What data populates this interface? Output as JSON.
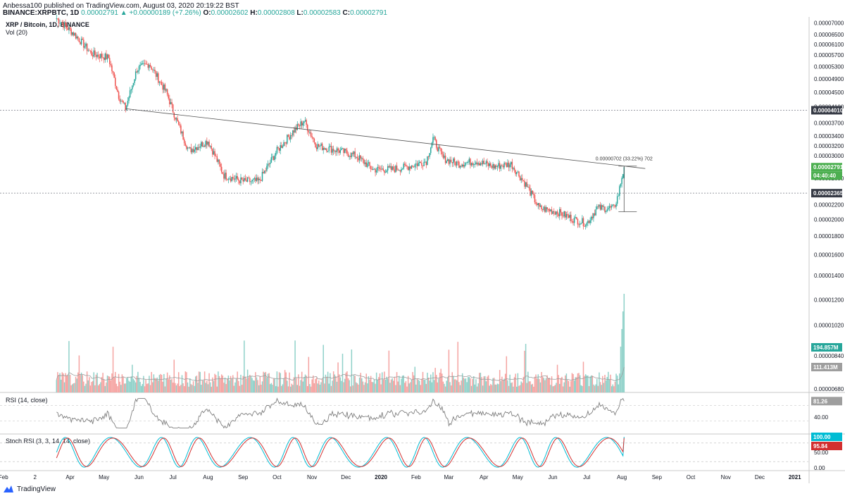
{
  "header": {
    "publisher_line": "Anbessa100 published on TradingView.com, August 03, 2020 20:19:22 BST",
    "symbol": "BINANCE:XRPBTC, 1D",
    "change": "0.00002791 ▲ +0.00000189 (+7.26%)",
    "o_label": "O:",
    "o_value": "0.00002602",
    "h_label": "H:",
    "h_value": "0.00002808",
    "l_label": "L:",
    "l_value": "0.00002583",
    "c_label": "C:",
    "c_value": "0.00002791"
  },
  "main_pane": {
    "title": "XRP / Bitcoin, 1D, BINANCE",
    "vol_label": "Vol (20)",
    "measure_label": "0.00000702 (33.22%) 702"
  },
  "rsi_pane": {
    "label": "RSI (14, close)",
    "ticks": [
      "40.00"
    ],
    "badge": "81.26"
  },
  "stoch_pane": {
    "label": "Stoch RSI (3, 3, 14, 14, close)",
    "ticks": [
      "50.00",
      "0.00"
    ],
    "badge_k": "100.00",
    "badge_d": "95.84"
  },
  "price_axis_ticks": [
    "0.00007000",
    "0.00006500",
    "0.00006100",
    "0.00005700",
    "0.00005300",
    "0.00004900",
    "0.00004500",
    "0.00004100",
    "0.00003700",
    "0.00003400",
    "0.00003200",
    "0.00003000",
    "0.00002600",
    "0.00002200",
    "0.00002000",
    "0.00001800",
    "0.00001600",
    "0.00001400",
    "0.00001200",
    "0.00001020",
    "0.00000840",
    "0.00000680"
  ],
  "price_badges": {
    "resistance": "0.00004010",
    "last_price": "0.00002791",
    "countdown": "04:40:40",
    "support": "0.00002365",
    "volume": "194.857M",
    "vol_ma": "111.413M"
  },
  "time_axis_labels": [
    "Feb",
    "2",
    "Apr",
    "May",
    "Jun",
    "Jul",
    "Aug",
    "Sep",
    "Oct",
    "Nov",
    "Dec",
    "2020",
    "Feb",
    "Mar",
    "Apr",
    "May",
    "Jun",
    "Jul",
    "Aug",
    "Sep",
    "Oct",
    "Nov",
    "Dec",
    "2021"
  ],
  "footer": {
    "brand": "TradingView"
  },
  "colors": {
    "up": "#26a69a",
    "down": "#ef5350",
    "vol_up": "#8fd1c9",
    "vol_down": "#f5a3a1",
    "grid": "#e6e6e6",
    "axis_text": "#131722",
    "level_line": "#787b86",
    "badge_dark": "#363a45",
    "badge_green": "#4caf50",
    "badge_teal": "#26a69a",
    "rsi_line": "#7e7e7e",
    "stoch_k": "#00bcd4",
    "stoch_d": "#d32f2f"
  },
  "chart_data": {
    "type": "candlestick",
    "symbol": "XRP/BTC",
    "timeframe": "1D",
    "x_range": [
      "2019-02",
      "2021-01"
    ],
    "y_scale": "log",
    "y_range": [
      6.8e-06,
      7.2e-05
    ],
    "price_path": [
      {
        "date": "2019-03-20",
        "close": 7.2e-05
      },
      {
        "date": "2019-04-05",
        "close": 6.5e-05
      },
      {
        "date": "2019-04-20",
        "close": 5.75e-05
      },
      {
        "date": "2019-05-05",
        "close": 5.6e-05
      },
      {
        "date": "2019-05-14",
        "close": 4.4e-05
      },
      {
        "date": "2019-05-20",
        "close": 4.05e-05
      },
      {
        "date": "2019-05-30",
        "close": 5.2e-05
      },
      {
        "date": "2019-06-10",
        "close": 5.4e-05
      },
      {
        "date": "2019-06-25",
        "close": 4.5e-05
      },
      {
        "date": "2019-07-05",
        "close": 3.7e-05
      },
      {
        "date": "2019-07-15",
        "close": 3.1e-05
      },
      {
        "date": "2019-08-01",
        "close": 3.3e-05
      },
      {
        "date": "2019-08-15",
        "close": 2.65e-05
      },
      {
        "date": "2019-09-01",
        "close": 2.55e-05
      },
      {
        "date": "2019-09-15",
        "close": 2.55e-05
      },
      {
        "date": "2019-10-01",
        "close": 3.1e-05
      },
      {
        "date": "2019-10-15",
        "close": 3.5e-05
      },
      {
        "date": "2019-10-25",
        "close": 3.75e-05
      },
      {
        "date": "2019-11-05",
        "close": 3.2e-05
      },
      {
        "date": "2019-11-25",
        "close": 3.1e-05
      },
      {
        "date": "2019-12-10",
        "close": 3e-05
      },
      {
        "date": "2019-12-25",
        "close": 2.75e-05
      },
      {
        "date": "2020-01-10",
        "close": 2.75e-05
      },
      {
        "date": "2020-01-25",
        "close": 2.8e-05
      },
      {
        "date": "2020-02-10",
        "close": 2.9e-05
      },
      {
        "date": "2020-02-16",
        "close": 3.35e-05
      },
      {
        "date": "2020-02-25",
        "close": 2.95e-05
      },
      {
        "date": "2020-03-10",
        "close": 2.85e-05
      },
      {
        "date": "2020-03-25",
        "close": 2.9e-05
      },
      {
        "date": "2020-04-10",
        "close": 2.8e-05
      },
      {
        "date": "2020-04-25",
        "close": 2.85e-05
      },
      {
        "date": "2020-05-08",
        "close": 2.5e-05
      },
      {
        "date": "2020-05-20",
        "close": 2.15e-05
      },
      {
        "date": "2020-06-05",
        "close": 2.1e-05
      },
      {
        "date": "2020-06-20",
        "close": 2e-05
      },
      {
        "date": "2020-07-01",
        "close": 1.95e-05
      },
      {
        "date": "2020-07-10",
        "close": 2.15e-05
      },
      {
        "date": "2020-07-25",
        "close": 2.15e-05
      },
      {
        "date": "2020-07-29",
        "close": 2.35e-05
      },
      {
        "date": "2020-08-01",
        "close": 2.62e-05
      },
      {
        "date": "2020-08-03",
        "close": 2.79e-05
      }
    ],
    "levels": [
      {
        "name": "resistance",
        "value": 4.01e-05
      },
      {
        "name": "support",
        "value": 2.365e-05
      }
    ],
    "trendline": [
      {
        "date": "2019-05-20",
        "price": 4.05e-05
      },
      {
        "date": "2020-08-03",
        "price": 2.81e-05
      }
    ],
    "last": {
      "open": 2.602e-05,
      "high": 2.808e-05,
      "low": 2.583e-05,
      "close": 2.791e-05
    },
    "volume_last": "194.857M",
    "volume_ma": "111.413M",
    "rsi_last": 81.26,
    "stoch_k_last": 100.0,
    "stoch_d_last": 95.84
  }
}
